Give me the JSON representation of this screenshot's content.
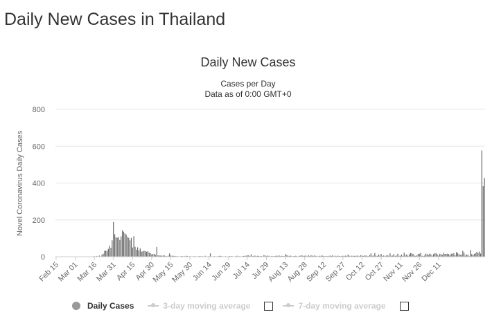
{
  "page": {
    "title": "Daily New Cases in Thailand"
  },
  "legend": {
    "items": [
      {
        "label": "Daily Cases",
        "active": true
      },
      {
        "label": "3-day moving average",
        "active": false
      },
      {
        "label": "7-day moving average",
        "active": false
      }
    ]
  },
  "chart_data": {
    "type": "bar",
    "title": "Daily New Cases",
    "subtitle": "Cases per Day",
    "subtitle2": "Data as of 0:00 GMT+0",
    "xlabel": "",
    "ylabel": "Novel Coronavirus Daily Cases",
    "ylim": [
      0,
      800
    ],
    "yticks": [
      0,
      200,
      400,
      600,
      800
    ],
    "grid": true,
    "legend_position": "bottom",
    "start_date": "Feb 15",
    "xtick_labels": [
      "Feb 15",
      "Mar 01",
      "Mar 16",
      "Mar 31",
      "Apr 15",
      "Apr 30",
      "May 15",
      "May 30",
      "Jun 14",
      "Jun 29",
      "Jul 14",
      "Jul 29",
      "Aug 13",
      "Aug 28",
      "Sep 12",
      "Sep 27",
      "Oct 12",
      "Oct 27",
      "Nov 11",
      "Nov 26",
      "Dec 11"
    ],
    "bar_color": "#666666",
    "series": [
      {
        "name": "Daily Cases",
        "values": [
          0,
          0,
          0,
          0,
          0,
          0,
          0,
          0,
          0,
          0,
          0,
          0,
          0,
          0,
          0,
          0,
          0,
          0,
          0,
          0,
          0,
          0,
          0,
          0,
          0,
          0,
          1,
          0,
          2,
          1,
          3,
          1,
          4,
          2,
          6,
          2,
          11,
          16,
          32,
          33,
          32,
          43,
          60,
          48,
          89,
          188,
          122,
          106,
          103,
          106,
          91,
          111,
          143,
          136,
          127,
          120,
          107,
          103,
          89,
          102,
          50,
          111,
          54,
          38,
          51,
          34,
          45,
          28,
          29,
          33,
          30,
          27,
          30,
          22,
          19,
          13,
          15,
          15,
          9,
          53,
          7,
          7,
          6,
          6,
          6,
          7,
          3,
          3,
          6,
          18,
          6,
          5,
          5,
          4,
          3,
          3,
          2,
          2,
          3,
          4,
          2,
          3,
          5,
          4,
          2,
          3,
          2,
          1,
          3,
          3,
          2,
          1,
          3,
          4,
          2,
          3,
          2,
          5,
          2,
          2,
          3,
          18,
          1,
          2,
          3,
          2,
          1,
          3,
          4,
          5,
          3,
          2,
          2,
          3,
          1,
          2,
          4,
          3,
          3,
          1,
          2,
          3,
          5,
          2,
          3,
          2,
          3,
          4,
          5,
          5,
          8,
          7,
          3,
          13,
          3,
          4,
          6,
          3,
          5,
          4,
          3,
          4,
          2,
          8,
          7,
          3,
          6,
          5,
          1,
          4,
          3,
          3,
          4,
          6,
          4,
          7,
          3,
          5,
          4,
          3,
          14,
          8,
          5,
          4,
          6,
          3,
          3,
          4,
          5,
          3,
          2,
          5,
          6,
          7,
          4,
          5,
          6,
          3,
          8,
          4,
          8,
          6,
          3,
          8,
          4,
          2,
          3,
          5,
          5,
          6,
          4,
          3,
          4,
          3,
          5,
          6,
          4,
          8,
          3,
          5,
          3,
          6,
          4,
          3,
          4,
          5,
          4,
          6,
          4,
          12,
          5,
          3,
          6,
          4,
          5,
          4,
          6,
          5,
          3,
          8,
          6,
          4,
          7,
          6,
          5,
          3,
          9,
          18,
          5,
          6,
          20,
          5,
          4,
          12,
          6,
          15,
          4,
          7,
          3,
          6,
          8,
          5,
          18,
          5,
          6,
          14,
          4,
          6,
          16,
          5,
          5,
          12,
          4,
          22,
          7,
          13,
          5,
          12,
          20,
          19,
          15,
          7,
          4,
          8,
          15,
          16,
          21,
          5,
          4,
          6,
          17,
          14,
          10,
          16,
          13,
          5,
          14,
          18,
          20,
          13,
          6,
          16,
          14,
          9,
          20,
          15,
          15,
          16,
          14,
          8,
          16,
          17,
          19,
          8,
          25,
          20,
          14,
          11,
          10,
          32,
          22,
          6,
          12,
          12,
          4,
          36,
          14,
          9,
          15,
          19,
          27,
          20,
          28,
          17,
          577,
          383,
          427
        ]
      }
    ]
  }
}
